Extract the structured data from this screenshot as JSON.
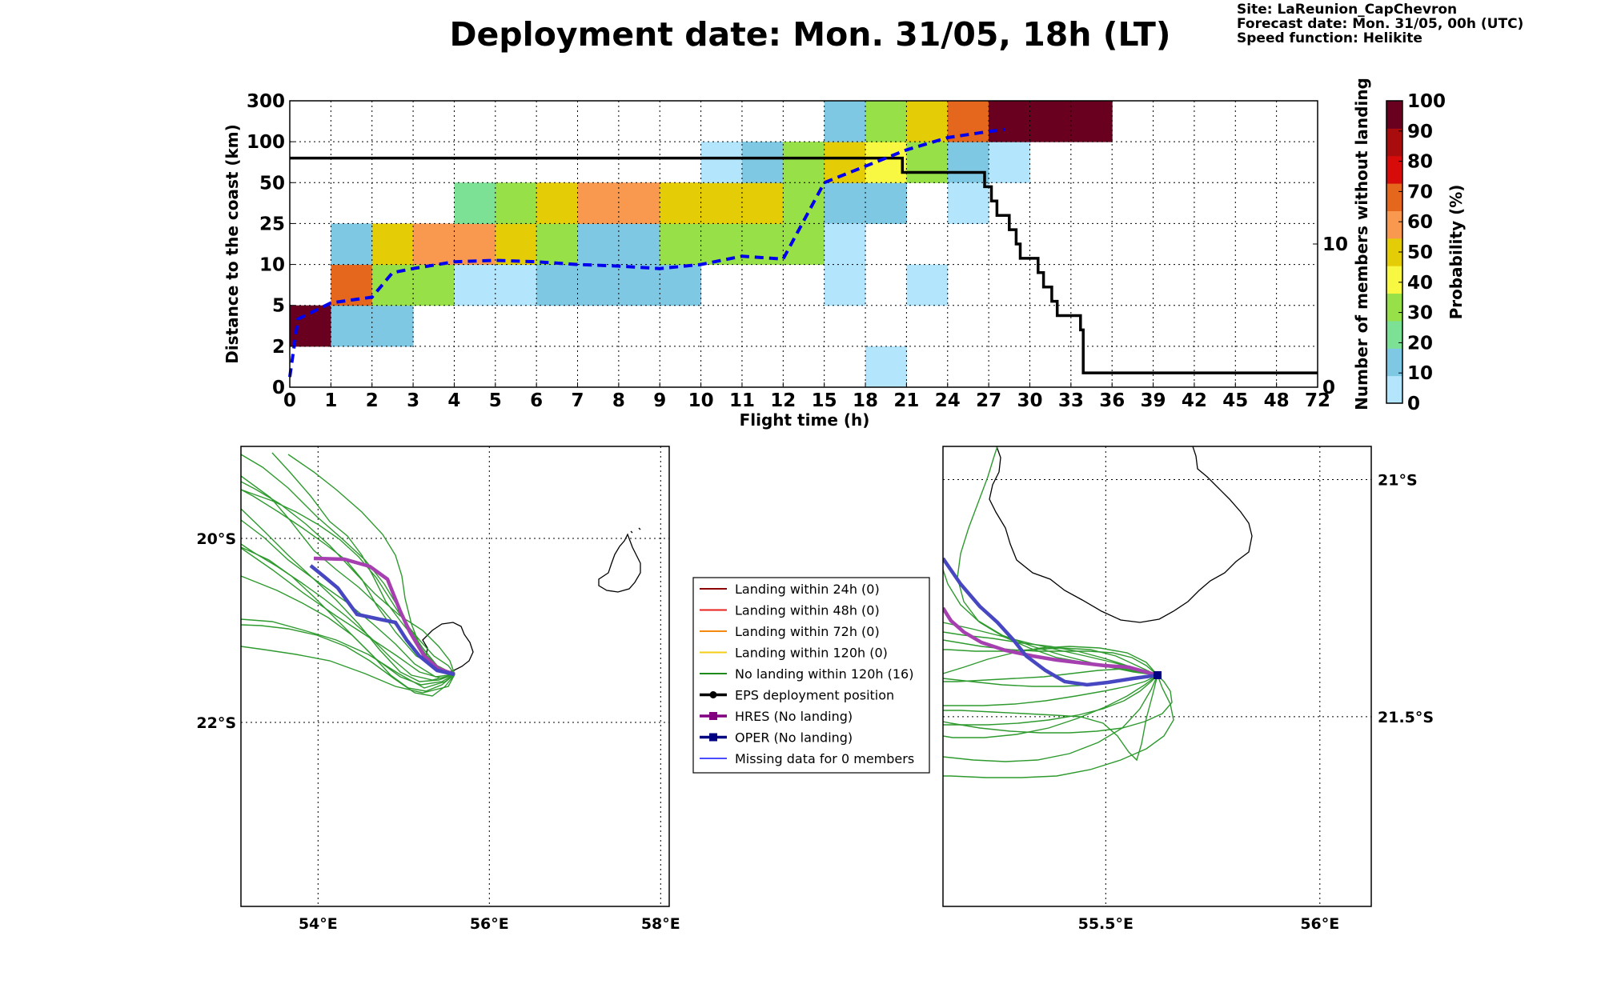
{
  "title": "Deployment date: Mon. 31/05, 18h (LT)",
  "info": {
    "site": "Site: LaReunion_CapChevron",
    "forecast": "Forecast date: Mon. 31/05, 00h (UTC)",
    "speed": "Speed function: Helikite"
  },
  "chart_data": [
    {
      "type": "heatmap",
      "xlabel": "Flight time (h)",
      "ylabel": "Distance to the coast (km)",
      "y2label": "Number of members without landing",
      "x_ticks": [
        "0",
        "1",
        "2",
        "3",
        "4",
        "5",
        "6",
        "7",
        "8",
        "9",
        "10",
        "11",
        "12",
        "15",
        "18",
        "21",
        "24",
        "27",
        "30",
        "33",
        "36",
        "39",
        "42",
        "45",
        "48",
        "72"
      ],
      "y_ticks": [
        "0",
        "2",
        "5",
        "10",
        "25",
        "50",
        "100",
        "300"
      ],
      "y2_ticks": [
        "0",
        "10"
      ],
      "y2_range": [
        0,
        20
      ],
      "colorbar": {
        "label": "Probability (%)",
        "ticks": [
          "0",
          "10",
          "20",
          "30",
          "40",
          "50",
          "60",
          "70",
          "80",
          "90",
          "100"
        ],
        "colors": [
          "#b3e5fc",
          "#7ec8e3",
          "#7de195",
          "#97e047",
          "#f8f843",
          "#e4cc07",
          "#f9994f",
          "#e5661d",
          "#d80b0b",
          "#a80c0c",
          "#6a0020"
        ]
      },
      "cells": [
        {
          "x": 0,
          "y": 1,
          "p": 100
        },
        {
          "x": 1,
          "y": 1,
          "p": 10
        },
        {
          "x": 2,
          "y": 1,
          "p": 10
        },
        {
          "x": 1,
          "y": 2,
          "p": 70
        },
        {
          "x": 2,
          "y": 2,
          "p": 30
        },
        {
          "x": 3,
          "y": 2,
          "p": 30
        },
        {
          "x": 4,
          "y": 2,
          "p": 0
        },
        {
          "x": 5,
          "y": 2,
          "p": 0
        },
        {
          "x": 6,
          "y": 2,
          "p": 10
        },
        {
          "x": 7,
          "y": 2,
          "p": 10
        },
        {
          "x": 8,
          "y": 2,
          "p": 10
        },
        {
          "x": 9,
          "y": 2,
          "p": 10
        },
        {
          "x": 1,
          "y": 3,
          "p": 10
        },
        {
          "x": 2,
          "y": 3,
          "p": 50
        },
        {
          "x": 3,
          "y": 3,
          "p": 60
        },
        {
          "x": 4,
          "y": 3,
          "p": 60
        },
        {
          "x": 5,
          "y": 3,
          "p": 50
        },
        {
          "x": 6,
          "y": 3,
          "p": 30
        },
        {
          "x": 7,
          "y": 3,
          "p": 10
        },
        {
          "x": 8,
          "y": 3,
          "p": 10
        },
        {
          "x": 9,
          "y": 3,
          "p": 30
        },
        {
          "x": 10,
          "y": 3,
          "p": 30
        },
        {
          "x": 11,
          "y": 3,
          "p": 30
        },
        {
          "x": 12,
          "y": 3,
          "p": 30
        },
        {
          "x": 4,
          "y": 4,
          "p": 20
        },
        {
          "x": 5,
          "y": 4,
          "p": 30
        },
        {
          "x": 6,
          "y": 4,
          "p": 50
        },
        {
          "x": 7,
          "y": 4,
          "p": 60
        },
        {
          "x": 8,
          "y": 4,
          "p": 60
        },
        {
          "x": 9,
          "y": 4,
          "p": 50
        },
        {
          "x": 10,
          "y": 4,
          "p": 50
        },
        {
          "x": 11,
          "y": 4,
          "p": 50
        },
        {
          "x": 12,
          "y": 4,
          "p": 30
        },
        {
          "x": 13,
          "y": 4,
          "p": 10
        },
        {
          "x": 14,
          "y": 4,
          "p": 10
        },
        {
          "x": 10,
          "y": 5,
          "p": 0
        },
        {
          "x": 11,
          "y": 5,
          "p": 10
        },
        {
          "x": 12,
          "y": 5,
          "p": 30
        },
        {
          "x": 13,
          "y": 5,
          "p": 50
        },
        {
          "x": 14,
          "y": 5,
          "p": 40
        },
        {
          "x": 15,
          "y": 5,
          "p": 30
        },
        {
          "x": 16,
          "y": 5,
          "p": 10
        },
        {
          "x": 17,
          "y": 5,
          "p": 0
        },
        {
          "x": 13,
          "y": 6,
          "p": 10
        },
        {
          "x": 14,
          "y": 6,
          "p": 30
        },
        {
          "x": 15,
          "y": 6,
          "p": 50
        },
        {
          "x": 16,
          "y": 6,
          "p": 70
        },
        {
          "x": 17,
          "y": 6,
          "p": 100
        },
        {
          "x": 18,
          "y": 6,
          "p": 100
        },
        {
          "x": 19,
          "y": 6,
          "p": 100
        },
        {
          "x": 13,
          "y": 2,
          "p": 0
        },
        {
          "x": 15,
          "y": 2,
          "p": 0
        },
        {
          "x": 13,
          "y": 3,
          "p": 0
        },
        {
          "x": 14,
          "y": 0,
          "p": 0
        },
        {
          "x": 16,
          "y": 4,
          "p": 0
        }
      ],
      "black_line": {
        "name": "Number of members without landing",
        "x": [
          0,
          20.7,
          20.7,
          26.7,
          26.7,
          27.2,
          27.2,
          27.6,
          27.6,
          28.5,
          28.5,
          29.0,
          29.0,
          29.3,
          29.3,
          30.6,
          30.6,
          31.0,
          31.0,
          31.6,
          31.6,
          32.0,
          32.0,
          33.7,
          33.7,
          33.9,
          33.9,
          72
        ],
        "y": [
          16,
          16,
          15,
          15,
          14,
          14,
          13,
          13,
          12,
          12,
          11,
          11,
          10,
          10,
          9,
          9,
          8,
          8,
          7,
          7,
          6,
          6,
          5,
          5,
          4,
          4,
          1,
          1
        ]
      },
      "blue_dashed": {
        "name": "median distance",
        "x": [
          0,
          0.2,
          1,
          2,
          2.5,
          3,
          4,
          5,
          6,
          7,
          8,
          9,
          10,
          11,
          12,
          15,
          18,
          21,
          24,
          27,
          28.2
        ],
        "y": [
          0.5,
          4,
          5.3,
          6,
          9,
          9.5,
          11,
          11.5,
          11,
          10,
          9.8,
          9.5,
          10,
          13,
          12,
          50,
          70,
          90,
          120,
          150,
          160
        ]
      }
    },
    {
      "type": "line",
      "map": "regional",
      "x_ticks": [
        "54°E",
        "56°E",
        "58°E"
      ],
      "y_ticks": [
        "20°S",
        "22°S"
      ],
      "xlim": [
        53.1,
        58.1
      ],
      "ylim": [
        -24.0,
        -19.0
      ]
    },
    {
      "type": "line",
      "map": "zoom",
      "x_ticks": [
        "55.5°E",
        "56°E"
      ],
      "y_ticks": [
        "21°S",
        "21.5°S"
      ],
      "xlim": [
        55.12,
        56.12
      ],
      "ylim": [
        -21.9,
        -20.93
      ]
    }
  ],
  "legend": [
    {
      "label": "Landing within 24h (0)",
      "color": "#8b0000",
      "marker": "none"
    },
    {
      "label": "Landing within 48h (0)",
      "color": "#e8201e",
      "marker": "none"
    },
    {
      "label": "Landing within 72h (0)",
      "color": "#f58a0e",
      "marker": "none"
    },
    {
      "label": "Landing within 120h (0)",
      "color": "#f5cd14",
      "marker": "none"
    },
    {
      "label": "No landing within 120h (16)",
      "color": "#1e8a1e",
      "marker": "none"
    },
    {
      "label": "EPS deployment position",
      "color": "#000000",
      "marker": "circle"
    },
    {
      "label": "HRES (No landing)",
      "color": "#800080",
      "marker": "square"
    },
    {
      "label": "OPER (No landing)",
      "color": "#000080",
      "marker": "square"
    },
    {
      "label": "Missing data for 0 members",
      "color": "#4b4bff",
      "marker": "none"
    }
  ]
}
